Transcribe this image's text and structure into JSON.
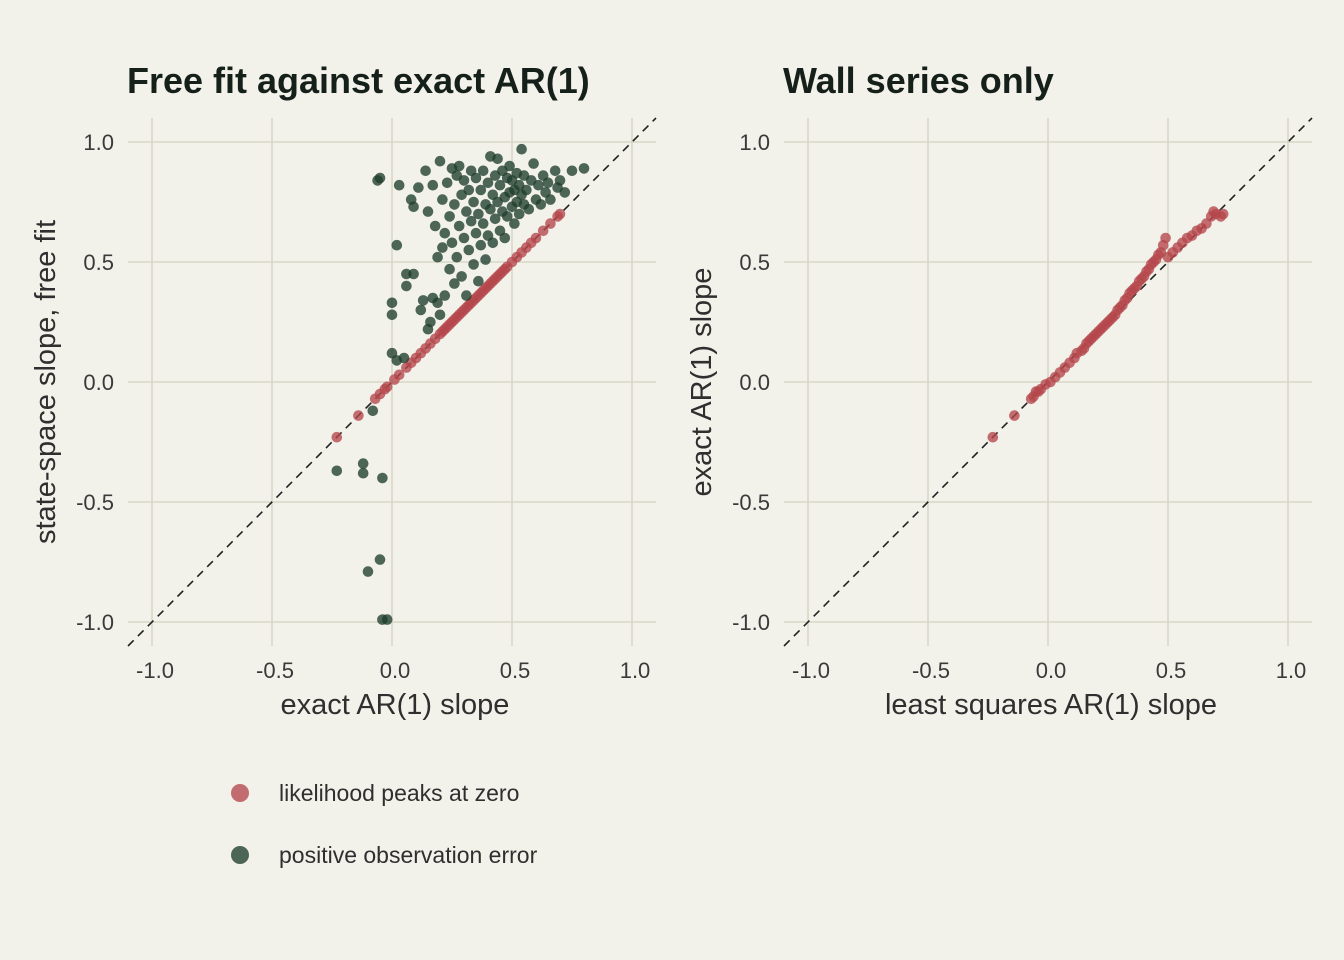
{
  "colors": {
    "background": "#f2f1ea",
    "grid": "#d8d7c6",
    "likelihood_peaks_at_zero": "#b5474c",
    "positive_observation_error": "#1f3d2b"
  },
  "legend": {
    "position": "bottom-left",
    "items": [
      {
        "label": "likelihood peaks at zero",
        "color": "#b5474c"
      },
      {
        "label": "positive observation error",
        "color": "#1f3d2b"
      }
    ]
  },
  "chart_data": [
    {
      "type": "scatter",
      "title": "Free fit against exact AR(1)",
      "xlabel": "exact AR(1) slope",
      "ylabel": "state-space slope, free fit",
      "xlim": [
        -1.1,
        1.1
      ],
      "ylim": [
        -1.1,
        1.1
      ],
      "xticks": [
        "-1.0",
        "-0.5",
        "0.0",
        "0.5",
        "1.0"
      ],
      "yticks": [
        "-1.0",
        "-0.5",
        "0.0",
        "0.5",
        "1.0"
      ],
      "grid": true,
      "reference_line": "y = x (dashed)",
      "series": [
        {
          "name": "likelihood peaks at zero",
          "color": "#b5474c",
          "points": [
            [
              -0.23,
              -0.23
            ],
            [
              -0.14,
              -0.14
            ],
            [
              -0.07,
              -0.07
            ],
            [
              -0.05,
              -0.05
            ],
            [
              -0.03,
              -0.03
            ],
            [
              -0.02,
              -0.02
            ],
            [
              0.01,
              0.01
            ],
            [
              0.03,
              0.03
            ],
            [
              0.06,
              0.06
            ],
            [
              0.08,
              0.08
            ],
            [
              0.1,
              0.1
            ],
            [
              0.12,
              0.12
            ],
            [
              0.14,
              0.14
            ],
            [
              0.16,
              0.16
            ],
            [
              0.18,
              0.18
            ],
            [
              0.2,
              0.2
            ],
            [
              0.21,
              0.21
            ],
            [
              0.22,
              0.22
            ],
            [
              0.23,
              0.23
            ],
            [
              0.24,
              0.24
            ],
            [
              0.25,
              0.25
            ],
            [
              0.26,
              0.26
            ],
            [
              0.27,
              0.27
            ],
            [
              0.28,
              0.28
            ],
            [
              0.29,
              0.29
            ],
            [
              0.3,
              0.3
            ],
            [
              0.31,
              0.31
            ],
            [
              0.32,
              0.32
            ],
            [
              0.33,
              0.33
            ],
            [
              0.34,
              0.34
            ],
            [
              0.35,
              0.35
            ],
            [
              0.36,
              0.36
            ],
            [
              0.37,
              0.37
            ],
            [
              0.38,
              0.38
            ],
            [
              0.39,
              0.39
            ],
            [
              0.4,
              0.4
            ],
            [
              0.41,
              0.41
            ],
            [
              0.42,
              0.42
            ],
            [
              0.43,
              0.43
            ],
            [
              0.44,
              0.44
            ],
            [
              0.45,
              0.45
            ],
            [
              0.46,
              0.46
            ],
            [
              0.47,
              0.47
            ],
            [
              0.48,
              0.48
            ],
            [
              0.5,
              0.5
            ],
            [
              0.52,
              0.52
            ],
            [
              0.54,
              0.54
            ],
            [
              0.56,
              0.56
            ],
            [
              0.58,
              0.58
            ],
            [
              0.6,
              0.6
            ],
            [
              0.63,
              0.63
            ],
            [
              0.66,
              0.66
            ],
            [
              0.69,
              0.69
            ],
            [
              0.7,
              0.7
            ]
          ]
        },
        {
          "name": "positive observation error",
          "color": "#1f3d2b",
          "points": [
            [
              -0.23,
              -0.37
            ],
            [
              -0.12,
              -0.34
            ],
            [
              -0.12,
              -0.38
            ],
            [
              -0.1,
              -0.79
            ],
            [
              -0.08,
              -0.12
            ],
            [
              -0.05,
              -0.74
            ],
            [
              -0.04,
              -0.99
            ],
            [
              -0.02,
              -0.99
            ],
            [
              -0.04,
              -0.4
            ],
            [
              -0.06,
              0.84
            ],
            [
              -0.05,
              0.85
            ],
            [
              0.0,
              0.12
            ],
            [
              0.02,
              0.09
            ],
            [
              0.05,
              0.1
            ],
            [
              0.0,
              0.28
            ],
            [
              0.0,
              0.33
            ],
            [
              0.02,
              0.57
            ],
            [
              0.03,
              0.82
            ],
            [
              0.06,
              0.4
            ],
            [
              0.06,
              0.45
            ],
            [
              0.08,
              0.76
            ],
            [
              0.09,
              0.73
            ],
            [
              0.09,
              0.45
            ],
            [
              0.11,
              0.81
            ],
            [
              0.12,
              0.3
            ],
            [
              0.13,
              0.34
            ],
            [
              0.15,
              0.22
            ],
            [
              0.16,
              0.25
            ],
            [
              0.17,
              0.35
            ],
            [
              0.19,
              0.33
            ],
            [
              0.14,
              0.88
            ],
            [
              0.15,
              0.71
            ],
            [
              0.17,
              0.82
            ],
            [
              0.18,
              0.65
            ],
            [
              0.19,
              0.52
            ],
            [
              0.2,
              0.28
            ],
            [
              0.2,
              0.92
            ],
            [
              0.21,
              0.56
            ],
            [
              0.21,
              0.76
            ],
            [
              0.22,
              0.62
            ],
            [
              0.22,
              0.36
            ],
            [
              0.23,
              0.83
            ],
            [
              0.24,
              0.47
            ],
            [
              0.24,
              0.69
            ],
            [
              0.25,
              0.89
            ],
            [
              0.25,
              0.58
            ],
            [
              0.26,
              0.74
            ],
            [
              0.26,
              0.41
            ],
            [
              0.27,
              0.86
            ],
            [
              0.27,
              0.52
            ],
            [
              0.28,
              0.65
            ],
            [
              0.28,
              0.9
            ],
            [
              0.29,
              0.78
            ],
            [
              0.29,
              0.44
            ],
            [
              0.3,
              0.6
            ],
            [
              0.3,
              0.84
            ],
            [
              0.31,
              0.71
            ],
            [
              0.31,
              0.36
            ],
            [
              0.32,
              0.55
            ],
            [
              0.32,
              0.8
            ],
            [
              0.33,
              0.67
            ],
            [
              0.33,
              0.88
            ],
            [
              0.34,
              0.49
            ],
            [
              0.34,
              0.75
            ],
            [
              0.35,
              0.62
            ],
            [
              0.35,
              0.85
            ],
            [
              0.36,
              0.42
            ],
            [
              0.36,
              0.7
            ],
            [
              0.37,
              0.8
            ],
            [
              0.37,
              0.57
            ],
            [
              0.38,
              0.88
            ],
            [
              0.38,
              0.66
            ],
            [
              0.39,
              0.74
            ],
            [
              0.39,
              0.51
            ],
            [
              0.4,
              0.83
            ],
            [
              0.4,
              0.61
            ],
            [
              0.41,
              0.94
            ],
            [
              0.41,
              0.72
            ],
            [
              0.42,
              0.78
            ],
            [
              0.42,
              0.58
            ],
            [
              0.43,
              0.86
            ],
            [
              0.43,
              0.68
            ],
            [
              0.44,
              0.93
            ],
            [
              0.44,
              0.75
            ],
            [
              0.45,
              0.63
            ],
            [
              0.45,
              0.82
            ],
            [
              0.46,
              0.71
            ],
            [
              0.46,
              0.88
            ],
            [
              0.47,
              0.77
            ],
            [
              0.47,
              0.6
            ],
            [
              0.48,
              0.85
            ],
            [
              0.48,
              0.69
            ],
            [
              0.49,
              0.79
            ],
            [
              0.49,
              0.9
            ],
            [
              0.5,
              0.73
            ],
            [
              0.5,
              0.84
            ],
            [
              0.51,
              0.66
            ],
            [
              0.51,
              0.8
            ],
            [
              0.52,
              0.87
            ],
            [
              0.52,
              0.75
            ],
            [
              0.53,
              0.7
            ],
            [
              0.53,
              0.82
            ],
            [
              0.54,
              0.97
            ],
            [
              0.54,
              0.78
            ],
            [
              0.55,
              0.86
            ],
            [
              0.55,
              0.74
            ],
            [
              0.56,
              0.8
            ],
            [
              0.57,
              0.72
            ],
            [
              0.58,
              0.84
            ],
            [
              0.59,
              0.91
            ],
            [
              0.6,
              0.76
            ],
            [
              0.61,
              0.82
            ],
            [
              0.62,
              0.74
            ],
            [
              0.63,
              0.86
            ],
            [
              0.64,
              0.79
            ],
            [
              0.65,
              0.83
            ],
            [
              0.66,
              0.76
            ],
            [
              0.68,
              0.88
            ],
            [
              0.69,
              0.81
            ],
            [
              0.7,
              0.84
            ],
            [
              0.72,
              0.79
            ],
            [
              0.75,
              0.88
            ],
            [
              0.8,
              0.89
            ]
          ]
        }
      ]
    },
    {
      "type": "scatter",
      "title": "Wall series only",
      "xlabel": "least squares AR(1) slope",
      "ylabel": "exact AR(1) slope",
      "xlim": [
        -1.1,
        1.1
      ],
      "ylim": [
        -1.1,
        1.1
      ],
      "xticks": [
        "-1.0",
        "-0.5",
        "0.0",
        "0.5",
        "1.0"
      ],
      "yticks": [
        "-1.0",
        "-0.5",
        "0.0",
        "0.5",
        "1.0"
      ],
      "grid": true,
      "reference_line": "y = x (dashed)",
      "series": [
        {
          "name": "likelihood peaks at zero",
          "color": "#b5474c",
          "points": [
            [
              -0.23,
              -0.23
            ],
            [
              -0.14,
              -0.14
            ],
            [
              -0.07,
              -0.07
            ],
            [
              -0.06,
              -0.06
            ],
            [
              -0.05,
              -0.04
            ],
            [
              -0.04,
              -0.04
            ],
            [
              -0.03,
              -0.03
            ],
            [
              -0.01,
              -0.01
            ],
            [
              0.01,
              0.0
            ],
            [
              0.03,
              0.02
            ],
            [
              0.05,
              0.04
            ],
            [
              0.07,
              0.06
            ],
            [
              0.09,
              0.08
            ],
            [
              0.11,
              0.1
            ],
            [
              0.12,
              0.12
            ],
            [
              0.14,
              0.13
            ],
            [
              0.15,
              0.14
            ],
            [
              0.16,
              0.16
            ],
            [
              0.17,
              0.17
            ],
            [
              0.18,
              0.18
            ],
            [
              0.19,
              0.19
            ],
            [
              0.2,
              0.2
            ],
            [
              0.21,
              0.21
            ],
            [
              0.22,
              0.22
            ],
            [
              0.23,
              0.23
            ],
            [
              0.24,
              0.24
            ],
            [
              0.25,
              0.25
            ],
            [
              0.26,
              0.26
            ],
            [
              0.27,
              0.27
            ],
            [
              0.28,
              0.28
            ],
            [
              0.29,
              0.3
            ],
            [
              0.3,
              0.31
            ],
            [
              0.31,
              0.32
            ],
            [
              0.32,
              0.34
            ],
            [
              0.33,
              0.35
            ],
            [
              0.34,
              0.37
            ],
            [
              0.35,
              0.38
            ],
            [
              0.36,
              0.39
            ],
            [
              0.37,
              0.4
            ],
            [
              0.38,
              0.42
            ],
            [
              0.39,
              0.43
            ],
            [
              0.4,
              0.44
            ],
            [
              0.41,
              0.46
            ],
            [
              0.42,
              0.47
            ],
            [
              0.43,
              0.49
            ],
            [
              0.44,
              0.5
            ],
            [
              0.45,
              0.51
            ],
            [
              0.46,
              0.53
            ],
            [
              0.47,
              0.54
            ],
            [
              0.48,
              0.57
            ],
            [
              0.49,
              0.6
            ],
            [
              0.5,
              0.52
            ],
            [
              0.52,
              0.54
            ],
            [
              0.54,
              0.56
            ],
            [
              0.56,
              0.58
            ],
            [
              0.58,
              0.6
            ],
            [
              0.6,
              0.61
            ],
            [
              0.62,
              0.63
            ],
            [
              0.64,
              0.64
            ],
            [
              0.66,
              0.66
            ],
            [
              0.68,
              0.69
            ],
            [
              0.69,
              0.71
            ],
            [
              0.7,
              0.7
            ],
            [
              0.72,
              0.69
            ],
            [
              0.73,
              0.7
            ]
          ]
        }
      ]
    }
  ]
}
